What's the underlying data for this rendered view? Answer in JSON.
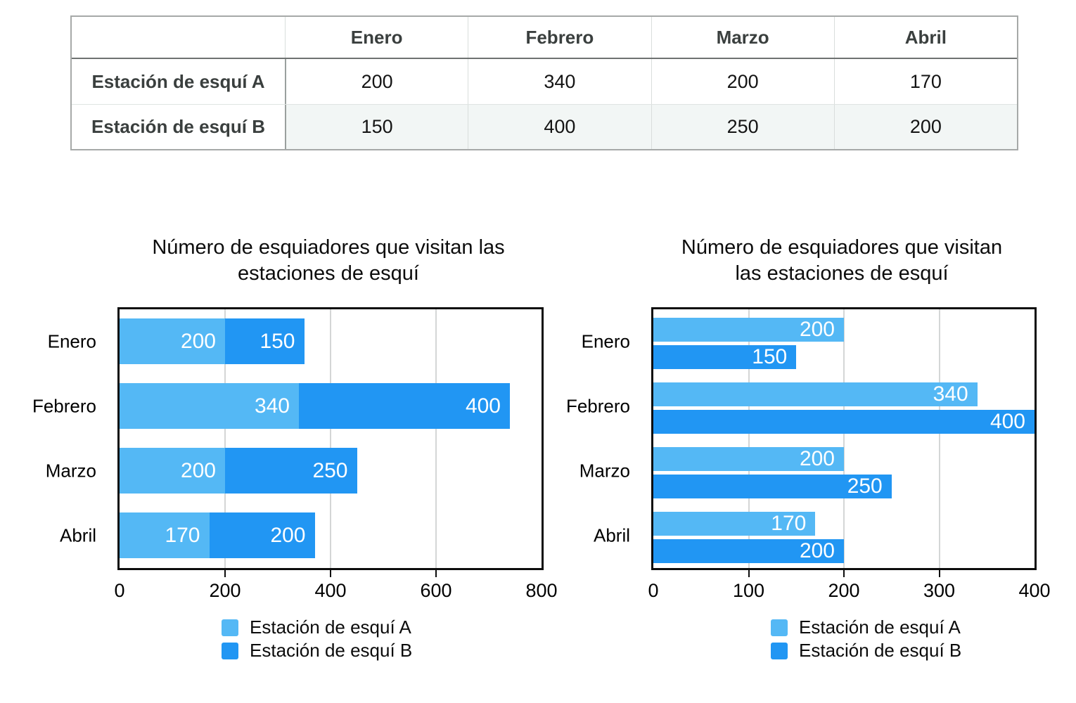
{
  "table": {
    "corner": "",
    "columns": [
      "Enero",
      "Febrero",
      "Marzo",
      "Abril"
    ],
    "rows": [
      {
        "label": "Estación de esquí A",
        "values": [
          "200",
          "340",
          "200",
          "170"
        ]
      },
      {
        "label": "Estación de esquí B",
        "values": [
          "150",
          "400",
          "250",
          "200"
        ]
      }
    ]
  },
  "colors": {
    "series_a": "#54b8f5",
    "series_b": "#2196f3",
    "bar_value_text": "#ffffff",
    "gridline": "#d4d6d6"
  },
  "chart_data": [
    {
      "type": "bar",
      "variant": "stacked-horizontal",
      "title": "Número de esquiadores que visitan las estaciones de esquí",
      "title_lines": [
        "Número de esquiadores que visitan las",
        "estaciones de esquí"
      ],
      "categories": [
        "Enero",
        "Febrero",
        "Marzo",
        "Abril"
      ],
      "series": [
        {
          "name": "Estación de esquí A",
          "color": "#54b8f5",
          "values": [
            200,
            340,
            200,
            170
          ]
        },
        {
          "name": "Estación de esquí B",
          "color": "#2196f3",
          "values": [
            150,
            400,
            250,
            200
          ]
        }
      ],
      "xlim": [
        0,
        800
      ],
      "xticks": [
        0,
        200,
        400,
        600,
        800
      ],
      "grid": true,
      "value_labels": "inside-end-white",
      "legend_position": "bottom"
    },
    {
      "type": "bar",
      "variant": "grouped-horizontal",
      "title": "Número de esquiadores que visitan las estaciones de esquí",
      "title_lines": [
        "Número de esquiadores que visitan",
        "las estaciones de esquí"
      ],
      "categories": [
        "Enero",
        "Febrero",
        "Marzo",
        "Abril"
      ],
      "series": [
        {
          "name": "Estación de esquí A",
          "color": "#54b8f5",
          "values": [
            200,
            340,
            200,
            170
          ]
        },
        {
          "name": "Estación de esquí B",
          "color": "#2196f3",
          "values": [
            150,
            400,
            250,
            200
          ]
        }
      ],
      "xlim": [
        0,
        400
      ],
      "xticks": [
        0,
        100,
        200,
        300,
        400
      ],
      "grid": true,
      "value_labels": "inside-end-white",
      "legend_position": "bottom"
    }
  ]
}
